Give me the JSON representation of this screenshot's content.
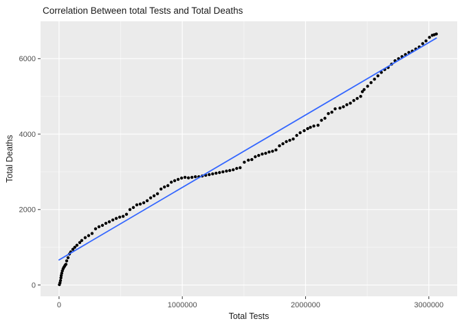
{
  "chart_data": {
    "type": "scatter",
    "title": "Correlation Between total Tests and Total Deaths",
    "xlabel": "Total Tests",
    "ylabel": "Total Deaths",
    "legend": "none",
    "grid": "on",
    "panel_bg": "#EBEBEB",
    "grid_major_color": "#FFFFFF",
    "grid_minor_color": "#FFFFFF",
    "tick_color": "#333333",
    "tick_label_color": "#4D4D4D",
    "xlim": [
      -150000,
      3230000
    ],
    "ylim": [
      -300,
      6990
    ],
    "x_ticks": {
      "values": [
        0,
        1000000,
        2000000,
        3000000
      ],
      "labels": [
        "0",
        "1000000",
        "2000000",
        "3000000"
      ],
      "minor": [
        500000,
        1500000,
        2500000
      ]
    },
    "y_ticks": {
      "values": [
        0,
        2000,
        4000,
        6000
      ],
      "labels": [
        "0",
        "2000",
        "4000",
        "6000"
      ],
      "minor": [
        1000,
        3000,
        5000
      ]
    },
    "series": [
      {
        "name": "observations",
        "type": "points",
        "color": "#000000",
        "point_radius": 2.2,
        "points": [
          [
            3000,
            10
          ],
          [
            8000,
            60
          ],
          [
            12000,
            120
          ],
          [
            15000,
            190
          ],
          [
            18000,
            250
          ],
          [
            22000,
            310
          ],
          [
            27000,
            375
          ],
          [
            33000,
            430
          ],
          [
            39000,
            470
          ],
          [
            45000,
            500
          ],
          [
            50000,
            530
          ],
          [
            56000,
            550
          ],
          [
            62000,
            640
          ],
          [
            73000,
            725
          ],
          [
            84000,
            820
          ],
          [
            95000,
            875
          ],
          [
            112000,
            945
          ],
          [
            128000,
            1000
          ],
          [
            145000,
            1055
          ],
          [
            168000,
            1125
          ],
          [
            184000,
            1180
          ],
          [
            212000,
            1255
          ],
          [
            240000,
            1310
          ],
          [
            268000,
            1365
          ],
          [
            296000,
            1490
          ],
          [
            324000,
            1545
          ],
          [
            352000,
            1580
          ],
          [
            380000,
            1635
          ],
          [
            408000,
            1675
          ],
          [
            436000,
            1725
          ],
          [
            464000,
            1765
          ],
          [
            492000,
            1800
          ],
          [
            520000,
            1820
          ],
          [
            547000,
            1875
          ],
          [
            575000,
            2000
          ],
          [
            603000,
            2055
          ],
          [
            631000,
            2125
          ],
          [
            659000,
            2145
          ],
          [
            687000,
            2180
          ],
          [
            715000,
            2235
          ],
          [
            743000,
            2310
          ],
          [
            771000,
            2365
          ],
          [
            799000,
            2420
          ],
          [
            827000,
            2545
          ],
          [
            855000,
            2600
          ],
          [
            883000,
            2635
          ],
          [
            911000,
            2725
          ],
          [
            938000,
            2765
          ],
          [
            966000,
            2800
          ],
          [
            994000,
            2835
          ],
          [
            1022000,
            2855
          ],
          [
            1050000,
            2840
          ],
          [
            1078000,
            2855
          ],
          [
            1106000,
            2870
          ],
          [
            1134000,
            2870
          ],
          [
            1162000,
            2890
          ],
          [
            1190000,
            2910
          ],
          [
            1218000,
            2925
          ],
          [
            1246000,
            2945
          ],
          [
            1274000,
            2965
          ],
          [
            1302000,
            2980
          ],
          [
            1330000,
            3000
          ],
          [
            1358000,
            3020
          ],
          [
            1385000,
            3035
          ],
          [
            1413000,
            3055
          ],
          [
            1441000,
            3090
          ],
          [
            1469000,
            3110
          ],
          [
            1503000,
            3255
          ],
          [
            1536000,
            3310
          ],
          [
            1564000,
            3325
          ],
          [
            1592000,
            3400
          ],
          [
            1620000,
            3435
          ],
          [
            1648000,
            3470
          ],
          [
            1676000,
            3490
          ],
          [
            1704000,
            3525
          ],
          [
            1732000,
            3545
          ],
          [
            1760000,
            3580
          ],
          [
            1788000,
            3690
          ],
          [
            1816000,
            3745
          ],
          [
            1844000,
            3800
          ],
          [
            1872000,
            3835
          ],
          [
            1900000,
            3870
          ],
          [
            1928000,
            3965
          ],
          [
            1956000,
            4035
          ],
          [
            1989000,
            4090
          ],
          [
            2017000,
            4145
          ],
          [
            2039000,
            4180
          ],
          [
            2067000,
            4215
          ],
          [
            2101000,
            4235
          ],
          [
            2129000,
            4365
          ],
          [
            2157000,
            4420
          ],
          [
            2185000,
            4545
          ],
          [
            2213000,
            4580
          ],
          [
            2240000,
            4670
          ],
          [
            2279000,
            4690
          ],
          [
            2307000,
            4725
          ],
          [
            2335000,
            4780
          ],
          [
            2363000,
            4820
          ],
          [
            2391000,
            4890
          ],
          [
            2419000,
            4945
          ],
          [
            2447000,
            5000
          ],
          [
            2461000,
            5125
          ],
          [
            2475000,
            5180
          ],
          [
            2503000,
            5270
          ],
          [
            2531000,
            5365
          ],
          [
            2559000,
            5455
          ],
          [
            2587000,
            5545
          ],
          [
            2615000,
            5635
          ],
          [
            2642000,
            5710
          ],
          [
            2670000,
            5765
          ],
          [
            2698000,
            5855
          ],
          [
            2726000,
            5945
          ],
          [
            2754000,
            6000
          ],
          [
            2782000,
            6055
          ],
          [
            2810000,
            6110
          ],
          [
            2838000,
            6165
          ],
          [
            2866000,
            6200
          ],
          [
            2894000,
            6255
          ],
          [
            2922000,
            6310
          ],
          [
            2950000,
            6400
          ],
          [
            2977000,
            6470
          ],
          [
            3005000,
            6565
          ],
          [
            3028000,
            6620
          ],
          [
            3044000,
            6635
          ],
          [
            3061000,
            6655
          ]
        ]
      },
      {
        "name": "linear-fit",
        "type": "line",
        "color": "#3366FF",
        "width": 1.8,
        "x": [
          0,
          3061000
        ],
        "y": [
          665,
          6545
        ]
      }
    ]
  }
}
